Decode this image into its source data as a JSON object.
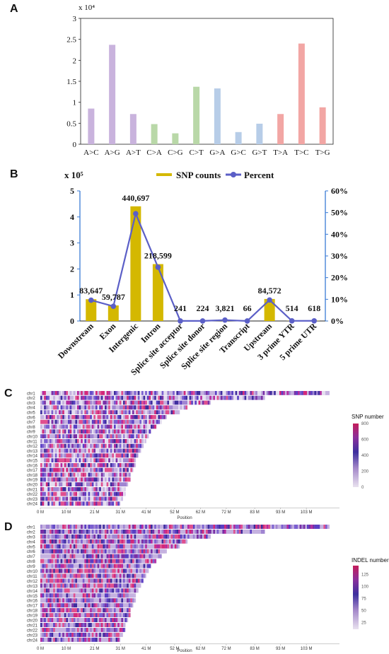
{
  "chart_data": [
    {
      "panel": "A",
      "type": "bar",
      "multiplier": "x 10⁴",
      "categories": [
        "A>C",
        "A>G",
        "A>T",
        "C>A",
        "C>G",
        "C>T",
        "G>A",
        "G>C",
        "G>T",
        "T>A",
        "T>C",
        "T>G"
      ],
      "values": [
        0.85,
        2.37,
        0.72,
        0.48,
        0.26,
        1.37,
        1.33,
        0.29,
        0.49,
        0.72,
        2.4,
        0.88
      ],
      "colors": [
        "#c9b3dd",
        "#c9b3dd",
        "#c9b3dd",
        "#b9d8a8",
        "#b9d8a8",
        "#b9d8a8",
        "#b7cde8",
        "#b7cde8",
        "#b7cde8",
        "#f2a6a4",
        "#f2a6a4",
        "#f2a6a4"
      ],
      "ylim": [
        0,
        3
      ],
      "yticks": [
        "0",
        "0.5",
        "1",
        "1.5",
        "2",
        "2.5",
        "3"
      ]
    },
    {
      "panel": "B",
      "type": "bar",
      "multiplier": "x 10⁵",
      "categories": [
        "Downstream",
        "Exon",
        "Intergenic",
        "Intron",
        "Splice site acceptor",
        "Splice site donor",
        "Splice site region",
        "Transcript",
        "Upstream",
        "3 prime YTR",
        "5 prime UTR"
      ],
      "series": [
        {
          "name": "SNP counts",
          "type": "bar",
          "color": "#d4b800",
          "values": [
            83647,
            59787,
            440697,
            218599,
            241,
            224,
            3821,
            66,
            84572,
            514,
            618
          ]
        },
        {
          "name": "Percent",
          "type": "line",
          "color": "#5b5fc7",
          "values": [
            9.6,
            6.8,
            49.5,
            24.8,
            0.03,
            0.03,
            0.43,
            0.01,
            9.7,
            0.06,
            0.07
          ]
        }
      ],
      "data_labels": [
        "83,647",
        "59,787",
        "440,697",
        "218,599",
        "241",
        "224",
        "3,821",
        "66",
        "84,572",
        "514",
        "618"
      ],
      "ylim": [
        0,
        5
      ],
      "yticks": [
        "0",
        "1",
        "2",
        "3",
        "4",
        "5"
      ],
      "y2lim": [
        0,
        60
      ],
      "y2ticks": [
        "0%",
        "10%",
        "20%",
        "30%",
        "40%",
        "50%",
        "60%"
      ],
      "legend_position": "top-right"
    },
    {
      "panel": "C",
      "type": "heatmap",
      "rows": [
        "chr1",
        "chr2",
        "chr3",
        "chr4",
        "chr5",
        "chr6",
        "chr7",
        "chr8",
        "chr9",
        "chr10",
        "chr11",
        "chr12",
        "chr13",
        "chr14",
        "chr15",
        "chr16",
        "chr17",
        "chr18",
        "chr19",
        "chr20",
        "chr21",
        "chr22",
        "chr23",
        "chr24"
      ],
      "lengths_mb": [
        112,
        87,
        66,
        57,
        54,
        49,
        47,
        45,
        43,
        42,
        41,
        40,
        39,
        38,
        37,
        37,
        36,
        35,
        35,
        34,
        33,
        33,
        32,
        31
      ],
      "xticks": [
        "0 M",
        "10 M",
        "21 M",
        "31 M",
        "41 M",
        "52 M",
        "62 M",
        "72 M",
        "83 M",
        "93 M",
        "103 M"
      ],
      "xlabel": "Position",
      "colorbar_title": "SNP number",
      "colorbar_ticks": [
        "0",
        "200",
        "400",
        "600",
        "800"
      ]
    },
    {
      "panel": "D",
      "type": "heatmap",
      "rows": [
        "chr1",
        "chr2",
        "chr3",
        "chr4",
        "chr5",
        "chr6",
        "chr7",
        "chr8",
        "chr9",
        "chr10",
        "chr11",
        "chr12",
        "chr13",
        "chr14",
        "chr15",
        "chr16",
        "chr17",
        "chr18",
        "chr19",
        "chr20",
        "chr21",
        "chr22",
        "chr23",
        "chr24"
      ],
      "lengths_mb": [
        112,
        87,
        66,
        57,
        54,
        49,
        47,
        45,
        43,
        42,
        41,
        40,
        39,
        38,
        37,
        37,
        36,
        35,
        35,
        34,
        33,
        33,
        32,
        31
      ],
      "xticks": [
        "0 M",
        "10 M",
        "21 M",
        "31 M",
        "41 M",
        "52 M",
        "62 M",
        "72 M",
        "83 M",
        "93 M",
        "103 M"
      ],
      "xlabel": "Position",
      "colorbar_title": "INDEL number",
      "colorbar_ticks": [
        "25",
        "50",
        "75",
        "100",
        "125"
      ]
    }
  ],
  "panel_labels": [
    "A",
    "B",
    "C",
    "D"
  ]
}
